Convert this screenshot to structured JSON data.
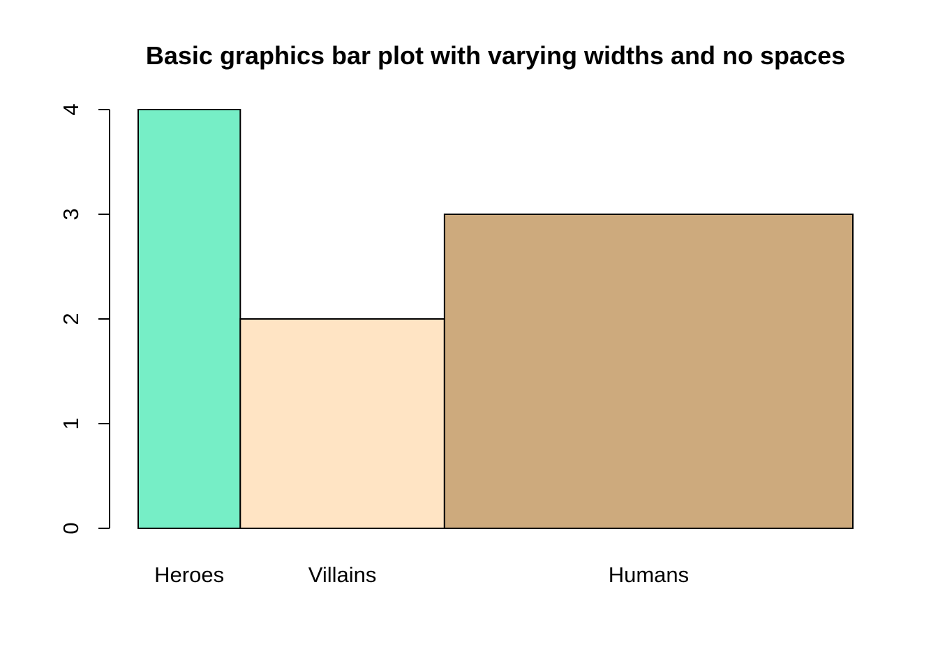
{
  "chart_data": {
    "type": "bar",
    "title": "Basic graphics bar plot with varying widths and no spaces",
    "xlabel": "",
    "ylabel": "",
    "categories": [
      "Heroes",
      "Villains",
      "Humans"
    ],
    "values": [
      4,
      2,
      3
    ],
    "widths": [
      1,
      2,
      4
    ],
    "bar_spacing": 0,
    "colors": [
      "#76EEC6",
      "#FFE4C4",
      "#CDAA7D"
    ],
    "bar_border_color": "#000000",
    "ylim": [
      0,
      4
    ],
    "yticks": [
      0,
      1,
      2,
      3,
      4
    ],
    "ytick_labels": [
      "0",
      "1",
      "2",
      "3",
      "4"
    ],
    "ytick_label_orientation": "rotated-vertical",
    "grid": false,
    "legend": "none"
  }
}
